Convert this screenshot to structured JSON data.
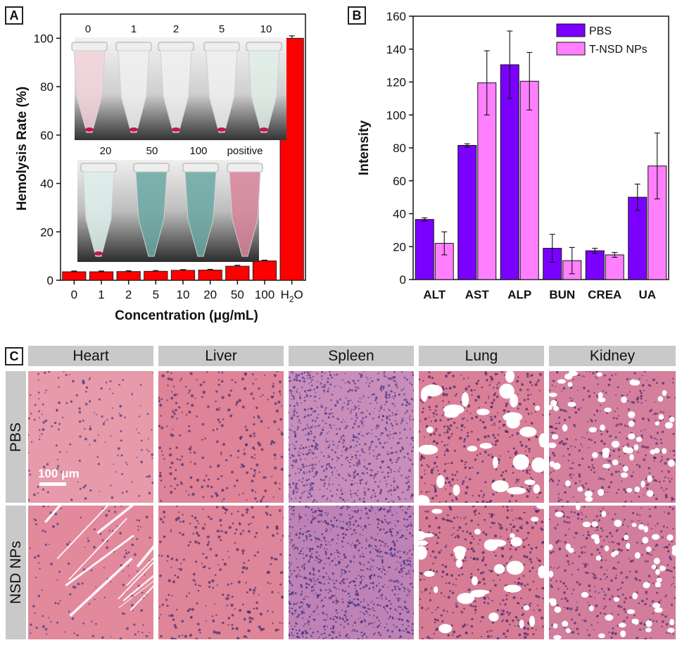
{
  "panel_labels": {
    "a": "A",
    "b": "B",
    "c": "C"
  },
  "panel_a": {
    "tube_labels_row1": [
      "0",
      "1",
      "2",
      "5",
      "10"
    ],
    "tube_labels_row2": [
      "20",
      "50",
      "100",
      "positive"
    ],
    "photo_colors": {
      "pink": "#d8849a",
      "teal": "#6aa8a4",
      "red": "#c8124f"
    }
  },
  "panel_c": {
    "columns": [
      "Heart",
      "Liver",
      "Spleen",
      "Lung",
      "Kidney"
    ],
    "rows": [
      "PBS",
      "NSD NPs"
    ],
    "scale_bar": "100 μm"
  },
  "chart_data": [
    {
      "type": "bar",
      "title": "",
      "xlabel": "Concentration (μg/mL)",
      "ylabel": "Hemolysis Rate (%)",
      "categories": [
        "0",
        "1",
        "2",
        "5",
        "10",
        "20",
        "50",
        "100",
        "H2O"
      ],
      "series": [
        {
          "values": [
            3.5,
            3.5,
            3.6,
            3.7,
            4.1,
            4.2,
            5.8,
            8.0,
            100.0
          ],
          "errors": [
            0.3,
            0.3,
            0.3,
            0.3,
            0.3,
            0.3,
            0.4,
            0.3,
            1.0
          ],
          "color": "#ff0000"
        }
      ],
      "ylim": [
        0,
        110
      ],
      "yticks": [
        0,
        20,
        40,
        60,
        80,
        100
      ]
    },
    {
      "type": "bar",
      "title": "",
      "xlabel": "",
      "ylabel": "Intensity",
      "categories": [
        "ALT",
        "AST",
        "ALP",
        "BUN",
        "CREA",
        "UA"
      ],
      "series": [
        {
          "name": "PBS",
          "color": "#7a00ff",
          "values": [
            36.5,
            81.5,
            130.5,
            19,
            17.5,
            50
          ],
          "errors": [
            1,
            1,
            20.5,
            8.5,
            1.5,
            8
          ]
        },
        {
          "name": "T-NSD NPs",
          "color": "#ff7fff",
          "values": [
            22,
            119.5,
            120.5,
            11.5,
            15,
            69
          ],
          "errors": [
            7,
            19.5,
            17.5,
            8,
            1.5,
            20
          ]
        }
      ],
      "ylim": [
        0,
        160
      ],
      "yticks": [
        0,
        20,
        40,
        60,
        80,
        100,
        120,
        140,
        160
      ],
      "legend": "top-right"
    }
  ]
}
